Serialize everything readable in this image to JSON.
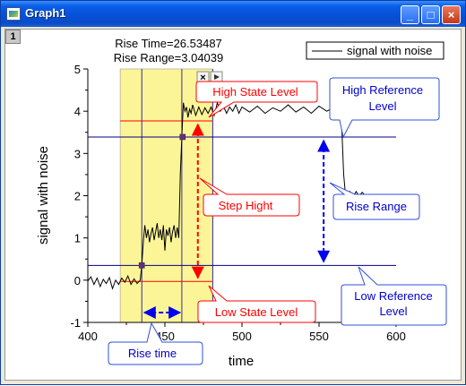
{
  "window": {
    "title": "Graph1",
    "layer_number": "1"
  },
  "title_buttons": {
    "minimize": "_",
    "maximize": "□",
    "close": "×"
  },
  "stats": {
    "rise_time": "Rise Time=26.53487",
    "rise_range": "Rise Range=3.04039"
  },
  "legend": {
    "label": "signal with noise"
  },
  "annotations": {
    "high_state": "High State Level",
    "step_height": "Step Hight",
    "low_state": "Low State Level",
    "rise_time": "Rise time",
    "rise_range": "Rise Range",
    "high_ref_1": "High Reference",
    "high_ref_2": "Level",
    "low_ref_1": "Low Reference",
    "low_ref_2": "Level"
  },
  "colors": {
    "highlight": "#fbf597",
    "blue_line": "#00008b",
    "red": "#ff0000",
    "blue": "#0000ee",
    "blue_box": "#3050d8"
  },
  "chart_data": {
    "type": "line",
    "xlabel": "time",
    "ylabel": "signal with noise",
    "xlim": [
      400,
      600
    ],
    "ylim": [
      -1,
      5
    ],
    "x_ticks": [
      400,
      450,
      500,
      550,
      600
    ],
    "y_ticks": [
      -1,
      0,
      1,
      2,
      3,
      4,
      5
    ],
    "highlight_region": [
      421,
      481
    ],
    "vertical_markers": [
      435,
      461,
      481
    ],
    "high_reference_level": 3.39,
    "low_reference_level": 0.35,
    "high_state_level": 3.77,
    "low_state_level": -0.03,
    "rise_start": [
      435,
      0.35
    ],
    "rise_end": [
      461.5,
      3.39
    ],
    "rise_time": 26.53487,
    "rise_range": 3.04039,
    "series": [
      {
        "name": "signal with noise",
        "points": [
          [
            400,
            -0.02
          ],
          [
            402,
            0.08
          ],
          [
            404,
            -0.1
          ],
          [
            406,
            0.05
          ],
          [
            408,
            -0.15
          ],
          [
            410,
            0.02
          ],
          [
            412,
            -0.08
          ],
          [
            414,
            0.06
          ],
          [
            416,
            -0.2
          ],
          [
            418,
            0.0
          ],
          [
            420,
            -0.1
          ],
          [
            422,
            0.05
          ],
          [
            424,
            -0.05
          ],
          [
            426,
            0.1
          ],
          [
            428,
            -0.1
          ],
          [
            430,
            0.03
          ],
          [
            432,
            -0.08
          ],
          [
            434,
            0.0
          ],
          [
            435,
            0.35
          ],
          [
            436,
            0.9
          ],
          [
            437,
            1.3
          ],
          [
            438,
            1.0
          ],
          [
            439,
            1.2
          ],
          [
            440,
            0.9
          ],
          [
            441,
            1.1
          ],
          [
            442,
            1.25
          ],
          [
            443,
            0.95
          ],
          [
            444,
            1.15
          ],
          [
            445,
            1.35
          ],
          [
            446,
            1.0
          ],
          [
            447,
            1.2
          ],
          [
            448,
            0.95
          ],
          [
            449,
            1.3
          ],
          [
            450,
            0.7
          ],
          [
            451,
            1.2
          ],
          [
            452,
            1.05
          ],
          [
            453,
            1.25
          ],
          [
            454,
            0.9
          ],
          [
            455,
            1.15
          ],
          [
            456,
            1.3
          ],
          [
            457,
            1.0
          ],
          [
            458,
            1.25
          ],
          [
            459,
            1.0
          ],
          [
            460,
            2.5
          ],
          [
            461,
            3.39
          ],
          [
            462,
            4.2
          ],
          [
            463,
            4.0
          ],
          [
            464,
            4.1
          ],
          [
            465,
            3.85
          ],
          [
            466,
            4.05
          ],
          [
            467,
            3.95
          ],
          [
            468,
            4.15
          ],
          [
            470,
            3.9
          ],
          [
            472,
            4.1
          ],
          [
            474,
            3.92
          ],
          [
            476,
            4.08
          ],
          [
            478,
            3.95
          ],
          [
            480,
            4.1
          ],
          [
            482,
            3.9
          ],
          [
            484,
            4.2
          ],
          [
            486,
            4.0
          ],
          [
            488,
            4.12
          ],
          [
            490,
            3.95
          ],
          [
            492,
            4.1
          ],
          [
            494,
            4.0
          ],
          [
            496,
            4.15
          ],
          [
            498,
            3.95
          ],
          [
            500,
            4.1
          ],
          [
            505,
            3.98
          ],
          [
            510,
            4.12
          ],
          [
            515,
            3.95
          ],
          [
            520,
            4.08
          ],
          [
            525,
            4.0
          ],
          [
            530,
            4.15
          ],
          [
            535,
            3.98
          ],
          [
            540,
            4.1
          ],
          [
            545,
            3.95
          ],
          [
            550,
            4.12
          ],
          [
            555,
            4.0
          ],
          [
            560,
            4.1
          ],
          [
            563,
            4.0
          ],
          [
            564,
            4.05
          ],
          [
            565,
            3.4
          ],
          [
            566,
            2.5
          ],
          [
            567,
            2.1
          ],
          [
            568,
            2.05
          ],
          [
            570,
            2.1
          ],
          [
            572,
            1.95
          ],
          [
            574,
            2.1
          ],
          [
            576,
            2.0
          ],
          [
            578,
            2.08
          ],
          [
            580,
            2.0
          ]
        ]
      }
    ]
  }
}
